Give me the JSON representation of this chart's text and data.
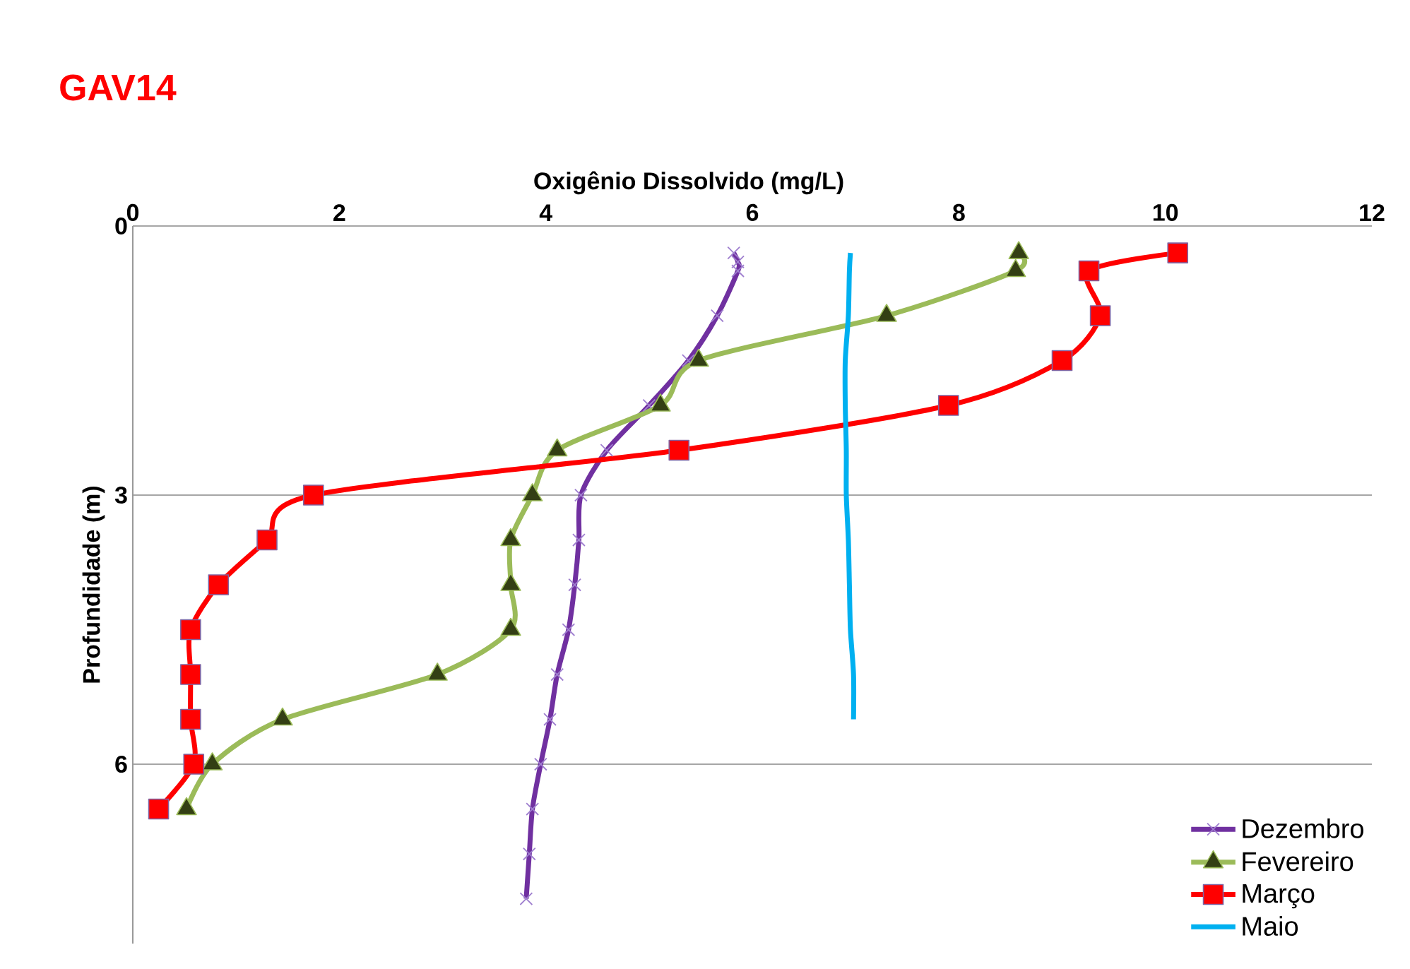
{
  "chart_data": {
    "type": "line",
    "title": "GAV14",
    "xlabel": "Oxigênio Dissolvido  (mg/L)",
    "ylabel": "Profundidade (m)",
    "xlim": [
      0,
      12
    ],
    "xticks": [
      0,
      2,
      4,
      6,
      8,
      10,
      12
    ],
    "ylim": [
      8,
      0
    ],
    "yticks": [
      0,
      3,
      6
    ],
    "grid": "y",
    "legend": "bottom right",
    "series": [
      {
        "name": "Dezembro",
        "color": "#7030a0",
        "marker": "cross",
        "x": [
          5.82,
          5.86,
          5.86,
          5.66,
          5.38,
          5.0,
          4.59,
          4.34,
          4.32,
          4.28,
          4.22,
          4.11,
          4.04,
          3.95,
          3.87,
          3.84,
          3.81
        ],
        "values": [
          0.3,
          0.4,
          0.5,
          1,
          1.5,
          2,
          2.5,
          3,
          3.5,
          4,
          4.5,
          5,
          5.5,
          6,
          6.5,
          7,
          7.5
        ]
      },
      {
        "name": "Fevereiro",
        "color": "#9bbb59",
        "marker": "triangle",
        "x": [
          8.58,
          8.55,
          7.3,
          5.48,
          5.11,
          4.11,
          3.87,
          3.66,
          3.66,
          3.66,
          2.95,
          1.45,
          0.77,
          0.52
        ],
        "values": [
          0.3,
          0.5,
          1,
          1.5,
          2,
          2.5,
          3,
          3.5,
          4,
          4.5,
          5,
          5.5,
          6,
          6.5
        ]
      },
      {
        "name": "Março",
        "color": "#ff0000",
        "marker": "square",
        "x": [
          10.12,
          9.26,
          9.37,
          9.0,
          7.9,
          5.29,
          1.75,
          1.3,
          0.83,
          0.56,
          0.56,
          0.56,
          0.59,
          0.25
        ],
        "values": [
          0.3,
          0.5,
          1,
          1.5,
          2,
          2.5,
          3,
          3.5,
          4,
          4.5,
          5,
          5.5,
          6,
          6.5
        ]
      },
      {
        "name": "Maio",
        "color": "#00b0f0",
        "marker": "none",
        "x": [
          6.95,
          6.94,
          6.93,
          6.9,
          6.9,
          6.91,
          6.91,
          6.93,
          6.94,
          6.95,
          6.98,
          6.98
        ],
        "values": [
          0.3,
          0.5,
          1,
          1.5,
          2,
          2.5,
          3,
          3.5,
          4,
          4.5,
          5,
          5.5
        ]
      }
    ]
  }
}
